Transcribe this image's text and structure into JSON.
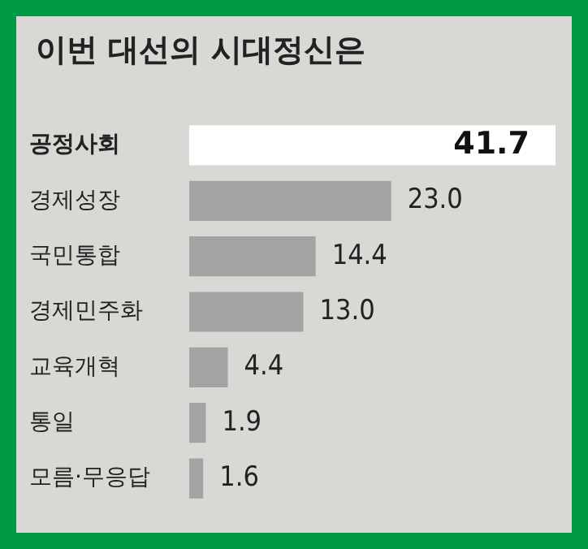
{
  "chart_data": {
    "type": "bar",
    "orientation": "horizontal",
    "title": "이번 대선의 시대정신은",
    "categories": [
      "공정사회",
      "경제성장",
      "국민통합",
      "경제민주화",
      "교육개혁",
      "통일",
      "모름·무응답"
    ],
    "values": [
      41.7,
      23.0,
      14.4,
      13.0,
      4.4,
      1.9,
      1.6
    ],
    "colors": [
      "#ffffff",
      "#a3a3a3",
      "#a3a3a3",
      "#a3a3a3",
      "#a3a3a3",
      "#a3a3a3",
      "#a3a3a3"
    ],
    "value_labels": [
      "41.7",
      "23.0",
      "14.4",
      "13.0",
      "4.4",
      "1.9",
      "1.6"
    ]
  }
}
